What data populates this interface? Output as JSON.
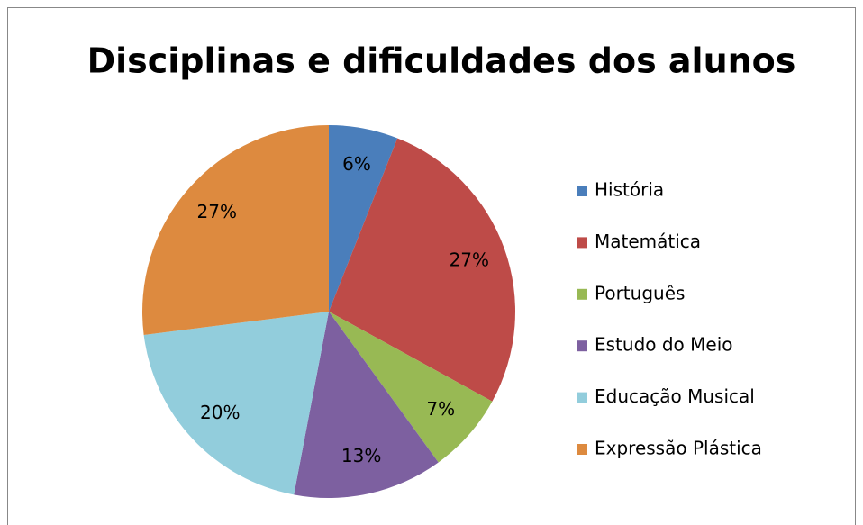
{
  "chart_data": {
    "type": "pie",
    "title": "Disciplinas e dificuldades dos alunos",
    "categories": [
      "História",
      "Matemática",
      "Português",
      "Estudo do Meio",
      "Educação Musical",
      "Expressão Plástica"
    ],
    "values": [
      6,
      27,
      7,
      13,
      20,
      27
    ],
    "value_labels": [
      "6%",
      "27%",
      "7%",
      "13%",
      "20%",
      "27%"
    ],
    "colors": [
      "#4A7EBB",
      "#BE4B48",
      "#98B954",
      "#7D60A0",
      "#92CDDC",
      "#DD8A3F"
    ],
    "legend": "right"
  }
}
